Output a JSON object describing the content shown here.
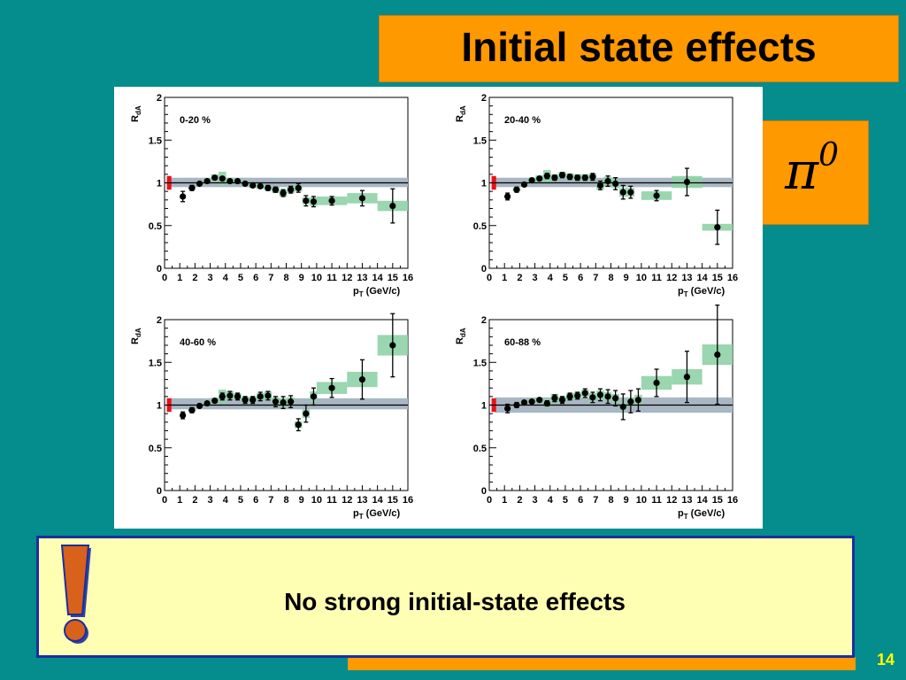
{
  "slide": {
    "title": "Initial state effects",
    "particle_symbol": "π",
    "particle_superscript": "0",
    "note": "No strong initial-state effects",
    "exclamation": "!",
    "page_number": "14",
    "colors": {
      "background": "#058c8c",
      "title_box": "#ff9900",
      "note_box": "#ffffb3",
      "note_border": "#1b2f9c",
      "exclamation": "#d8611c",
      "page_number": "#ffff00"
    }
  },
  "chart_data": [
    {
      "type": "scatter",
      "title": "0-20 %",
      "xlabel": "p_T (GeV/c)",
      "ylabel": "R_dA",
      "xlim": [
        0,
        16
      ],
      "ylim": [
        0,
        2
      ],
      "xticks": [
        0,
        1,
        2,
        3,
        4,
        5,
        6,
        7,
        8,
        9,
        10,
        11,
        12,
        13,
        14,
        15,
        16
      ],
      "yticks": [
        0,
        0.5,
        1,
        1.5,
        2
      ],
      "reference_line": 1,
      "reference_band": [
        0.95,
        1.06
      ],
      "norm_uncertainty_box": [
        0.92,
        1.08
      ],
      "points": [
        {
          "x": 1.2,
          "y": 0.84,
          "err": 0.06,
          "sys": 0
        },
        {
          "x": 1.8,
          "y": 0.94,
          "err": 0.03,
          "sys": 0.02
        },
        {
          "x": 2.3,
          "y": 0.99,
          "err": 0.02,
          "sys": 0.02
        },
        {
          "x": 2.8,
          "y": 1.02,
          "err": 0.02,
          "sys": 0.03
        },
        {
          "x": 3.3,
          "y": 1.06,
          "err": 0.02,
          "sys": 0.04
        },
        {
          "x": 3.8,
          "y": 1.05,
          "err": 0.02,
          "sys": 0.08
        },
        {
          "x": 4.3,
          "y": 1.02,
          "err": 0.02,
          "sys": 0.04
        },
        {
          "x": 4.8,
          "y": 1.02,
          "err": 0.02,
          "sys": 0.03
        },
        {
          "x": 5.3,
          "y": 0.99,
          "err": 0.02,
          "sys": 0.03
        },
        {
          "x": 5.8,
          "y": 0.97,
          "err": 0.02,
          "sys": 0.03
        },
        {
          "x": 6.3,
          "y": 0.96,
          "err": 0.02,
          "sys": 0.03
        },
        {
          "x": 6.8,
          "y": 0.94,
          "err": 0.03,
          "sys": 0.03
        },
        {
          "x": 7.3,
          "y": 0.92,
          "err": 0.03,
          "sys": 0.04
        },
        {
          "x": 7.8,
          "y": 0.88,
          "err": 0.04,
          "sys": 0.04
        },
        {
          "x": 8.3,
          "y": 0.92,
          "err": 0.04,
          "sys": 0.04
        },
        {
          "x": 8.8,
          "y": 0.94,
          "err": 0.05,
          "sys": 0.04
        },
        {
          "x": 9.3,
          "y": 0.79,
          "err": 0.06,
          "sys": 0.04
        },
        {
          "x": 9.8,
          "y": 0.78,
          "err": 0.06,
          "sys": 0.05
        },
        {
          "x": 11.0,
          "y": 0.79,
          "err": 0.05,
          "sys": 0.05
        },
        {
          "x": 13.0,
          "y": 0.82,
          "err": 0.09,
          "sys": 0.06
        },
        {
          "x": 15.0,
          "y": 0.73,
          "err": 0.2,
          "sys": 0.06
        }
      ]
    },
    {
      "type": "scatter",
      "title": "20-40 %",
      "xlabel": "p_T (GeV/c)",
      "ylabel": "R_dA",
      "xlim": [
        0,
        16
      ],
      "ylim": [
        0,
        2
      ],
      "xticks": [
        0,
        1,
        2,
        3,
        4,
        5,
        6,
        7,
        8,
        9,
        10,
        11,
        12,
        13,
        14,
        15,
        16
      ],
      "yticks": [
        0,
        0.5,
        1,
        1.5,
        2
      ],
      "reference_line": 1,
      "reference_band": [
        0.95,
        1.06
      ],
      "norm_uncertainty_box": [
        0.92,
        1.08
      ],
      "points": [
        {
          "x": 1.2,
          "y": 0.84,
          "err": 0.04,
          "sys": 0
        },
        {
          "x": 1.8,
          "y": 0.92,
          "err": 0.03,
          "sys": 0.02
        },
        {
          "x": 2.3,
          "y": 0.98,
          "err": 0.02,
          "sys": 0.02
        },
        {
          "x": 2.8,
          "y": 1.03,
          "err": 0.02,
          "sys": 0.03
        },
        {
          "x": 3.3,
          "y": 1.05,
          "err": 0.02,
          "sys": 0.04
        },
        {
          "x": 3.8,
          "y": 1.08,
          "err": 0.03,
          "sys": 0.07
        },
        {
          "x": 4.3,
          "y": 1.06,
          "err": 0.03,
          "sys": 0.04
        },
        {
          "x": 4.8,
          "y": 1.09,
          "err": 0.03,
          "sys": 0.04
        },
        {
          "x": 5.3,
          "y": 1.07,
          "err": 0.03,
          "sys": 0.04
        },
        {
          "x": 5.8,
          "y": 1.06,
          "err": 0.03,
          "sys": 0.04
        },
        {
          "x": 6.3,
          "y": 1.06,
          "err": 0.03,
          "sys": 0.04
        },
        {
          "x": 6.8,
          "y": 1.07,
          "err": 0.04,
          "sys": 0.04
        },
        {
          "x": 7.3,
          "y": 0.97,
          "err": 0.05,
          "sys": 0.05
        },
        {
          "x": 7.8,
          "y": 1.02,
          "err": 0.06,
          "sys": 0.05
        },
        {
          "x": 8.3,
          "y": 0.99,
          "err": 0.07,
          "sys": 0.05
        },
        {
          "x": 8.8,
          "y": 0.89,
          "err": 0.08,
          "sys": 0.05
        },
        {
          "x": 9.3,
          "y": 0.89,
          "err": 0.07,
          "sys": 0.05
        },
        {
          "x": 11.0,
          "y": 0.85,
          "err": 0.06,
          "sys": 0.05
        },
        {
          "x": 13.0,
          "y": 1.01,
          "err": 0.16,
          "sys": 0.07
        },
        {
          "x": 15.0,
          "y": 0.48,
          "err": 0.2,
          "sys": 0.04
        }
      ]
    },
    {
      "type": "scatter",
      "title": "40-60 %",
      "xlabel": "p_T (GeV/c)",
      "ylabel": "R_dA",
      "xlim": [
        0,
        16
      ],
      "ylim": [
        0,
        2
      ],
      "xticks": [
        0,
        1,
        2,
        3,
        4,
        5,
        6,
        7,
        8,
        9,
        10,
        11,
        12,
        13,
        14,
        15,
        16
      ],
      "yticks": [
        0,
        0.5,
        1,
        1.5,
        2
      ],
      "reference_line": 1,
      "reference_band": [
        0.95,
        1.08
      ],
      "norm_uncertainty_box": [
        0.92,
        1.08
      ],
      "points": [
        {
          "x": 1.2,
          "y": 0.88,
          "err": 0.04,
          "sys": 0
        },
        {
          "x": 1.8,
          "y": 0.94,
          "err": 0.03,
          "sys": 0.02
        },
        {
          "x": 2.3,
          "y": 0.99,
          "err": 0.02,
          "sys": 0.02
        },
        {
          "x": 2.8,
          "y": 1.02,
          "err": 0.02,
          "sys": 0.03
        },
        {
          "x": 3.3,
          "y": 1.05,
          "err": 0.02,
          "sys": 0.04
        },
        {
          "x": 3.8,
          "y": 1.1,
          "err": 0.04,
          "sys": 0.08
        },
        {
          "x": 4.3,
          "y": 1.11,
          "err": 0.05,
          "sys": 0.05
        },
        {
          "x": 4.8,
          "y": 1.1,
          "err": 0.04,
          "sys": 0.04
        },
        {
          "x": 5.3,
          "y": 1.06,
          "err": 0.04,
          "sys": 0.04
        },
        {
          "x": 5.8,
          "y": 1.06,
          "err": 0.04,
          "sys": 0.04
        },
        {
          "x": 6.3,
          "y": 1.1,
          "err": 0.05,
          "sys": 0.04
        },
        {
          "x": 6.8,
          "y": 1.11,
          "err": 0.05,
          "sys": 0.05
        },
        {
          "x": 7.3,
          "y": 1.04,
          "err": 0.06,
          "sys": 0.05
        },
        {
          "x": 7.8,
          "y": 1.03,
          "err": 0.07,
          "sys": 0.05
        },
        {
          "x": 8.3,
          "y": 1.04,
          "err": 0.07,
          "sys": 0.05
        },
        {
          "x": 8.8,
          "y": 0.77,
          "err": 0.07,
          "sys": 0.04
        },
        {
          "x": 9.3,
          "y": 0.9,
          "err": 0.1,
          "sys": 0.05
        },
        {
          "x": 9.8,
          "y": 1.1,
          "err": 0.1,
          "sys": 0.06
        },
        {
          "x": 11.0,
          "y": 1.2,
          "err": 0.11,
          "sys": 0.07
        },
        {
          "x": 13.0,
          "y": 1.3,
          "err": 0.23,
          "sys": 0.09
        },
        {
          "x": 15.0,
          "y": 1.7,
          "err": 0.37,
          "sys": 0.12
        }
      ]
    },
    {
      "type": "scatter",
      "title": "60-88 %",
      "xlabel": "p_T (GeV/c)",
      "ylabel": "R_dA",
      "xlim": [
        0,
        16
      ],
      "ylim": [
        0,
        2
      ],
      "xticks": [
        0,
        1,
        2,
        3,
        4,
        5,
        6,
        7,
        8,
        9,
        10,
        11,
        12,
        13,
        14,
        15,
        16
      ],
      "yticks": [
        0,
        0.5,
        1,
        1.5,
        2
      ],
      "reference_line": 1,
      "reference_band": [
        0.91,
        1.09
      ],
      "norm_uncertainty_box": [
        0.92,
        1.08
      ],
      "points": [
        {
          "x": 1.2,
          "y": 0.96,
          "err": 0.05,
          "sys": 0
        },
        {
          "x": 1.8,
          "y": 1.0,
          "err": 0.03,
          "sys": 0.02
        },
        {
          "x": 2.3,
          "y": 1.03,
          "err": 0.02,
          "sys": 0.02
        },
        {
          "x": 2.8,
          "y": 1.04,
          "err": 0.02,
          "sys": 0.03
        },
        {
          "x": 3.3,
          "y": 1.06,
          "err": 0.02,
          "sys": 0.03
        },
        {
          "x": 3.8,
          "y": 1.02,
          "err": 0.03,
          "sys": 0.05
        },
        {
          "x": 4.3,
          "y": 1.08,
          "err": 0.04,
          "sys": 0.05
        },
        {
          "x": 4.8,
          "y": 1.06,
          "err": 0.04,
          "sys": 0.04
        },
        {
          "x": 5.3,
          "y": 1.1,
          "err": 0.04,
          "sys": 0.04
        },
        {
          "x": 5.8,
          "y": 1.11,
          "err": 0.04,
          "sys": 0.04
        },
        {
          "x": 6.3,
          "y": 1.14,
          "err": 0.05,
          "sys": 0.04
        },
        {
          "x": 6.8,
          "y": 1.09,
          "err": 0.06,
          "sys": 0.05
        },
        {
          "x": 7.3,
          "y": 1.12,
          "err": 0.07,
          "sys": 0.05
        },
        {
          "x": 7.8,
          "y": 1.1,
          "err": 0.08,
          "sys": 0.05
        },
        {
          "x": 8.3,
          "y": 1.08,
          "err": 0.09,
          "sys": 0.05
        },
        {
          "x": 8.8,
          "y": 0.98,
          "err": 0.15,
          "sys": 0.05
        },
        {
          "x": 9.3,
          "y": 1.04,
          "err": 0.13,
          "sys": 0.05
        },
        {
          "x": 9.8,
          "y": 1.06,
          "err": 0.13,
          "sys": 0.06
        },
        {
          "x": 11.0,
          "y": 1.26,
          "err": 0.16,
          "sys": 0.08
        },
        {
          "x": 13.0,
          "y": 1.33,
          "err": 0.3,
          "sys": 0.09
        },
        {
          "x": 15.0,
          "y": 1.59,
          "err": 0.58,
          "sys": 0.12
        }
      ]
    }
  ]
}
